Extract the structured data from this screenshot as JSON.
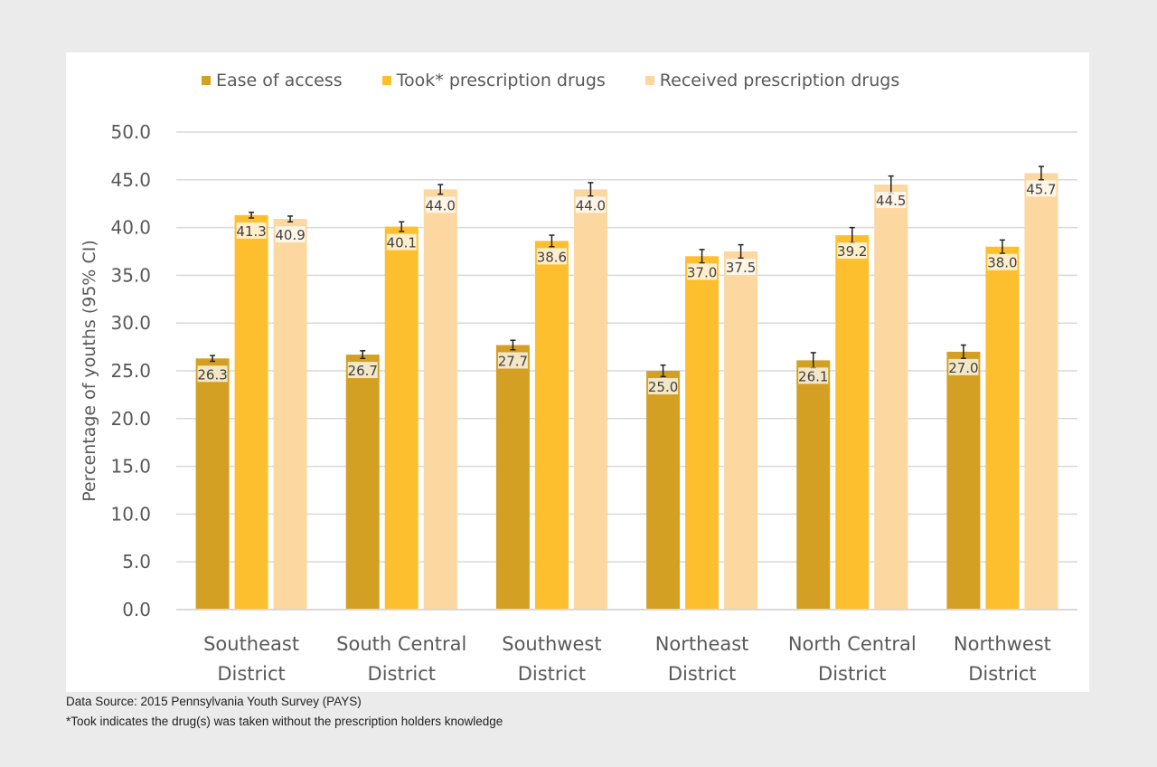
{
  "chart_data": {
    "type": "bar",
    "title": "",
    "xlabel": "",
    "ylabel": "Percentage of youths (95% CI)",
    "ylim": [
      0,
      50
    ],
    "yticks": [
      "0.0",
      "5.0",
      "10.0",
      "15.0",
      "20.0",
      "25.0",
      "30.0",
      "35.0",
      "40.0",
      "45.0",
      "50.0"
    ],
    "grid": true,
    "legend_position": "top",
    "categories": [
      [
        "Southeast",
        "District"
      ],
      [
        "South Central",
        "District"
      ],
      [
        "Southwest",
        "District"
      ],
      [
        "Northeast",
        "District"
      ],
      [
        "North Central",
        "District"
      ],
      [
        "Northwest",
        "District"
      ]
    ],
    "series": [
      {
        "name": "Ease of access",
        "color": "#d4a024",
        "values": [
          26.3,
          26.7,
          27.7,
          25.0,
          26.1,
          27.0
        ],
        "ci_halfwidth": [
          0.3,
          0.4,
          0.5,
          0.6,
          0.8,
          0.7
        ]
      },
      {
        "name": "Took* prescription drugs",
        "color": "#fdbf2d",
        "values": [
          41.3,
          40.1,
          38.6,
          37.0,
          39.2,
          38.0
        ],
        "ci_halfwidth": [
          0.3,
          0.5,
          0.6,
          0.7,
          0.8,
          0.7
        ]
      },
      {
        "name": "Received prescription drugs",
        "color": "#fcd7a0",
        "values": [
          40.9,
          44.0,
          44.0,
          37.5,
          44.5,
          45.7
        ],
        "ci_halfwidth": [
          0.3,
          0.5,
          0.7,
          0.7,
          0.9,
          0.7
        ]
      }
    ]
  },
  "notes": {
    "source": "Data Source: 2015 Pennsylvania Youth Survey (PAYS)",
    "footnote": "*Took indicates the drug(s) was taken without the prescription holders knowledge"
  }
}
